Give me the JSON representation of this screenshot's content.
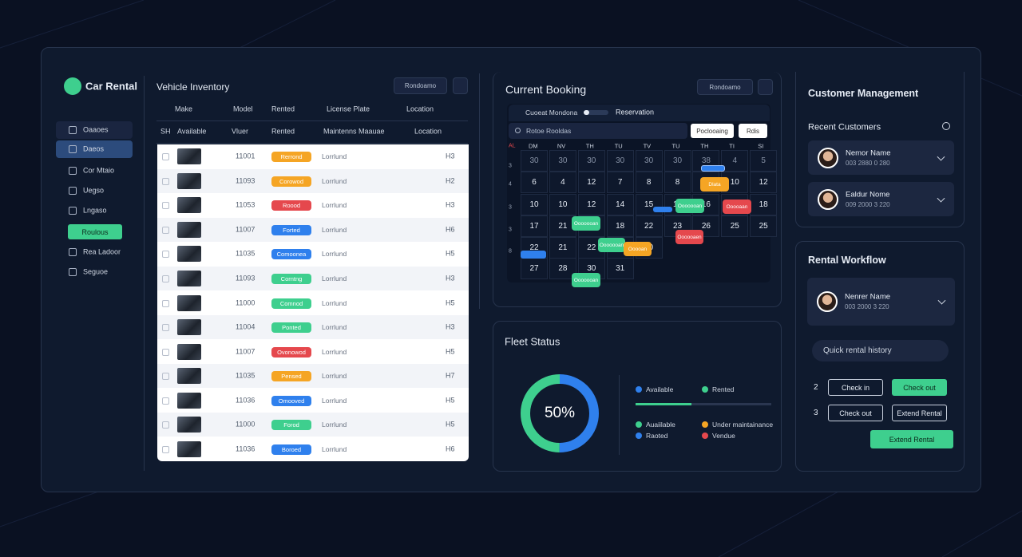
{
  "sidebar": {
    "brand": "Car Rental",
    "nav": [
      "Oaaoes",
      "Daeos",
      "Cor Mtaio",
      "Uegso",
      "Lngaso",
      "Roulous",
      "Rea Ladoor",
      "Seguoe"
    ]
  },
  "inventory": {
    "title": "Vehicle Inventory",
    "search": "Rondoamo",
    "header1": [
      "Make",
      "Model",
      "Rented",
      "License Plate",
      "Location"
    ],
    "header2": [
      "SH",
      "Available",
      "Vluer",
      "Rented",
      "Maintenns Maauae",
      "Location"
    ],
    "rows": [
      {
        "id": "11001",
        "status": "Rerrond",
        "color": "#f5a524",
        "location": "Lorrlund",
        "code": "H3"
      },
      {
        "id": "11093",
        "status": "Corowod",
        "color": "#f5a524",
        "location": "Lorrlund",
        "code": "H2"
      },
      {
        "id": "11053",
        "status": "Roood",
        "color": "#e5484d",
        "location": "Lorrlund",
        "code": "H3"
      },
      {
        "id": "11007",
        "status": "Forted",
        "color": "#2f80ed",
        "location": "Lorrlund",
        "code": "H6"
      },
      {
        "id": "11035",
        "status": "Comoonea",
        "color": "#2f80ed",
        "location": "Lorrlund",
        "code": "H5"
      },
      {
        "id": "11093",
        "status": "Corntng",
        "color": "#3ecf8e",
        "location": "Lorrlund",
        "code": "H3"
      },
      {
        "id": "11000",
        "status": "Comnod",
        "color": "#3ecf8e",
        "location": "Lorrlund",
        "code": "H5"
      },
      {
        "id": "11004",
        "status": "Ponted",
        "color": "#3ecf8e",
        "location": "Lorrlund",
        "code": "H3"
      },
      {
        "id": "11007",
        "status": "Ovonowod",
        "color": "#e5484d",
        "location": "Lorrlund",
        "code": "H5"
      },
      {
        "id": "11035",
        "status": "Pensed",
        "color": "#f5a524",
        "location": "Lorrlund",
        "code": "H7"
      },
      {
        "id": "11036",
        "status": "Omooved",
        "color": "#2f80ed",
        "location": "Lorrlund",
        "code": "H5"
      },
      {
        "id": "11000",
        "status": "Forod",
        "color": "#3ecf8e",
        "location": "Lorrlund",
        "code": "H5"
      },
      {
        "id": "11036",
        "status": "Boroed",
        "color": "#2f80ed",
        "location": "Lorrlund",
        "code": "H6"
      }
    ]
  },
  "booking": {
    "title": "Current Booking",
    "search": "Rondoamo",
    "mode": "Cuoeat Mondona",
    "view": "Reservation",
    "filter": "Rotoe Rooldas",
    "buttons": [
      "Poclooaing",
      "Rdis"
    ],
    "days": [
      "DM",
      "NV",
      "TH",
      "TU",
      "TV",
      "TU",
      "TH",
      "TI",
      "SI"
    ],
    "side_labels": [
      "AL",
      "3",
      "4",
      "3",
      "3",
      "8"
    ],
    "weeks": [
      [
        "30",
        "30",
        "30",
        "30",
        "30",
        "30",
        "38",
        "4",
        "5"
      ],
      [
        "6",
        "4",
        "12",
        "7",
        "8",
        "8",
        "10",
        "10",
        "12"
      ],
      [
        "10",
        "10",
        "12",
        "14",
        "15",
        "15",
        "16",
        "19",
        "18"
      ],
      [
        "17",
        "21",
        "12",
        "18",
        "22",
        "23",
        "26",
        "25",
        "25"
      ],
      [
        "22",
        "21",
        "22",
        "23",
        "20"
      ],
      [
        "27",
        "28",
        "30",
        "31"
      ]
    ],
    "events": [
      {
        "label": "Dlata",
        "color": "#f5a524"
      },
      {
        "label": "Ooooooan",
        "color": "#3ecf8e"
      },
      {
        "label": "Ooooaan",
        "color": "#e5484d"
      },
      {
        "label": "Ooooooan",
        "color": "#3ecf8e"
      },
      {
        "label": "Oooooaen",
        "color": "#e5484d"
      },
      {
        "label": "Ooooooan",
        "color": "#3ecf8e"
      },
      {
        "label": "Ooooan",
        "color": "#f5a524"
      },
      {
        "label": "Ooooooan",
        "color": "#3ecf8e"
      }
    ]
  },
  "fleet": {
    "title": "Fleet Status",
    "percent": {
      "value": 50,
      "label": "50%"
    },
    "legend": [
      {
        "name": "Available",
        "color": "#2f80ed"
      },
      {
        "name": "Rented",
        "color": "#3ecf8e"
      },
      {
        "name": "Auaiilable",
        "color": "#3ecf8e"
      },
      {
        "name": "Under maintainance",
        "color": "#f5a524"
      },
      {
        "name": "Raoted",
        "color": "#2f80ed"
      },
      {
        "name": "Vendue",
        "color": "#e5484d"
      }
    ]
  },
  "customers": {
    "title": "Customer Management",
    "subtitle": "Recent Customers",
    "list": [
      {
        "name": "Nemor Name",
        "phone": "003 2880 0 280"
      },
      {
        "name": "Ealdur Nome",
        "phone": "009 2000 3 220"
      }
    ]
  },
  "workflow": {
    "title": "Rental Workflow",
    "person": {
      "name": "Nenrer Name",
      "phone": "003 2000 3 220"
    },
    "history": "Quick rental history",
    "steps": [
      {
        "num": "2",
        "actions": [
          "Check in",
          "Check out"
        ]
      },
      {
        "num": "3",
        "actions": [
          "Check out",
          "Extend Rental"
        ]
      }
    ],
    "primary": "Extend Rental"
  }
}
